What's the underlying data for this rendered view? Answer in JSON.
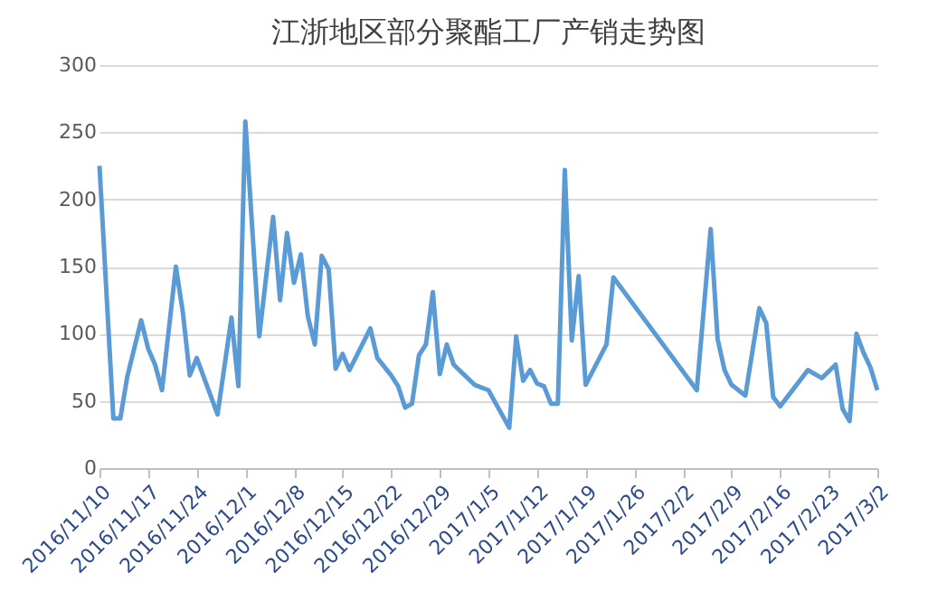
{
  "chart_data": {
    "type": "line",
    "title": "江浙地区部分聚酯工厂产销走势图",
    "x": [
      "2016-11-10",
      "2016-11-12",
      "2016-11-13",
      "2016-11-14",
      "2016-11-16",
      "2016-11-17",
      "2016-11-18",
      "2016-11-19",
      "2016-11-21",
      "2016-11-22",
      "2016-11-23",
      "2016-11-24",
      "2016-11-27",
      "2016-11-29",
      "2016-11-30",
      "2016-12-01",
      "2016-12-03",
      "2016-12-05",
      "2016-12-06",
      "2016-12-07",
      "2016-12-08",
      "2016-12-09",
      "2016-12-10",
      "2016-12-11",
      "2016-12-12",
      "2016-12-13",
      "2016-12-14",
      "2016-12-15",
      "2016-12-16",
      "2016-12-19",
      "2016-12-20",
      "2016-12-22",
      "2016-12-23",
      "2016-12-24",
      "2016-12-25",
      "2016-12-26",
      "2016-12-27",
      "2016-12-28",
      "2016-12-29",
      "2016-12-30",
      "2016-12-31",
      "2017-01-03",
      "2017-01-05",
      "2017-01-08",
      "2017-01-09",
      "2017-01-10",
      "2017-01-11",
      "2017-01-12",
      "2017-01-13",
      "2017-01-14",
      "2017-01-15",
      "2017-01-16",
      "2017-01-17",
      "2017-01-18",
      "2017-01-19",
      "2017-01-22",
      "2017-01-23",
      "2017-02-04",
      "2017-02-06",
      "2017-02-07",
      "2017-02-08",
      "2017-02-09",
      "2017-02-11",
      "2017-02-13",
      "2017-02-14",
      "2017-02-15",
      "2017-02-16",
      "2017-02-20",
      "2017-02-22",
      "2017-02-24",
      "2017-02-25",
      "2017-02-26",
      "2017-02-27",
      "2017-02-28",
      "2017-03-01",
      "2017-03-02"
    ],
    "series": [
      {
        "color": "#5b9bd5",
        "values": [
          225,
          37,
          37,
          68,
          110,
          89,
          77,
          58,
          150,
          116,
          69,
          82,
          40,
          112,
          61,
          258,
          98,
          187,
          125,
          175,
          138,
          159,
          113,
          92,
          158,
          148,
          74,
          85,
          73,
          104,
          82,
          69,
          61,
          45,
          48,
          84,
          92,
          131,
          70,
          92,
          77,
          62,
          58,
          30,
          98,
          65,
          73,
          63,
          61,
          48,
          48,
          222,
          95,
          143,
          62,
          92,
          142,
          58,
          178,
          96,
          73,
          62,
          54,
          119,
          108,
          53,
          46,
          73,
          67,
          77,
          44,
          35,
          100,
          86,
          75,
          58
        ]
      }
    ],
    "xlim": [
      "2016-11-10",
      "2017-03-02"
    ],
    "xticks": [
      {
        "value": "2016-11-10",
        "label": "2016/11/10"
      },
      {
        "value": "2016-11-17",
        "label": "2016/11/17"
      },
      {
        "value": "2016-11-24",
        "label": "2016/11/24"
      },
      {
        "value": "2016-12-01",
        "label": "2016/12/1"
      },
      {
        "value": "2016-12-08",
        "label": "2016/12/8"
      },
      {
        "value": "2016-12-15",
        "label": "2016/12/15"
      },
      {
        "value": "2016-12-22",
        "label": "2016/12/22"
      },
      {
        "value": "2016-12-29",
        "label": "2016/12/29"
      },
      {
        "value": "2017-01-05",
        "label": "2017/1/5"
      },
      {
        "value": "2017-01-12",
        "label": "2017/1/12"
      },
      {
        "value": "2017-01-19",
        "label": "2017/1/19"
      },
      {
        "value": "2017-01-26",
        "label": "2017/1/26"
      },
      {
        "value": "2017-02-02",
        "label": "2017/2/2"
      },
      {
        "value": "2017-02-09",
        "label": "2017/2/9"
      },
      {
        "value": "2017-02-16",
        "label": "2017/2/16"
      },
      {
        "value": "2017-02-23",
        "label": "2017/2/23"
      },
      {
        "value": "2017-03-02",
        "label": "2017/3/2"
      }
    ],
    "ylim": [
      0,
      300
    ],
    "yticks": [
      0,
      50,
      100,
      150,
      200,
      250,
      300
    ],
    "grid": "y",
    "marker": "none",
    "line_style": "solid"
  }
}
